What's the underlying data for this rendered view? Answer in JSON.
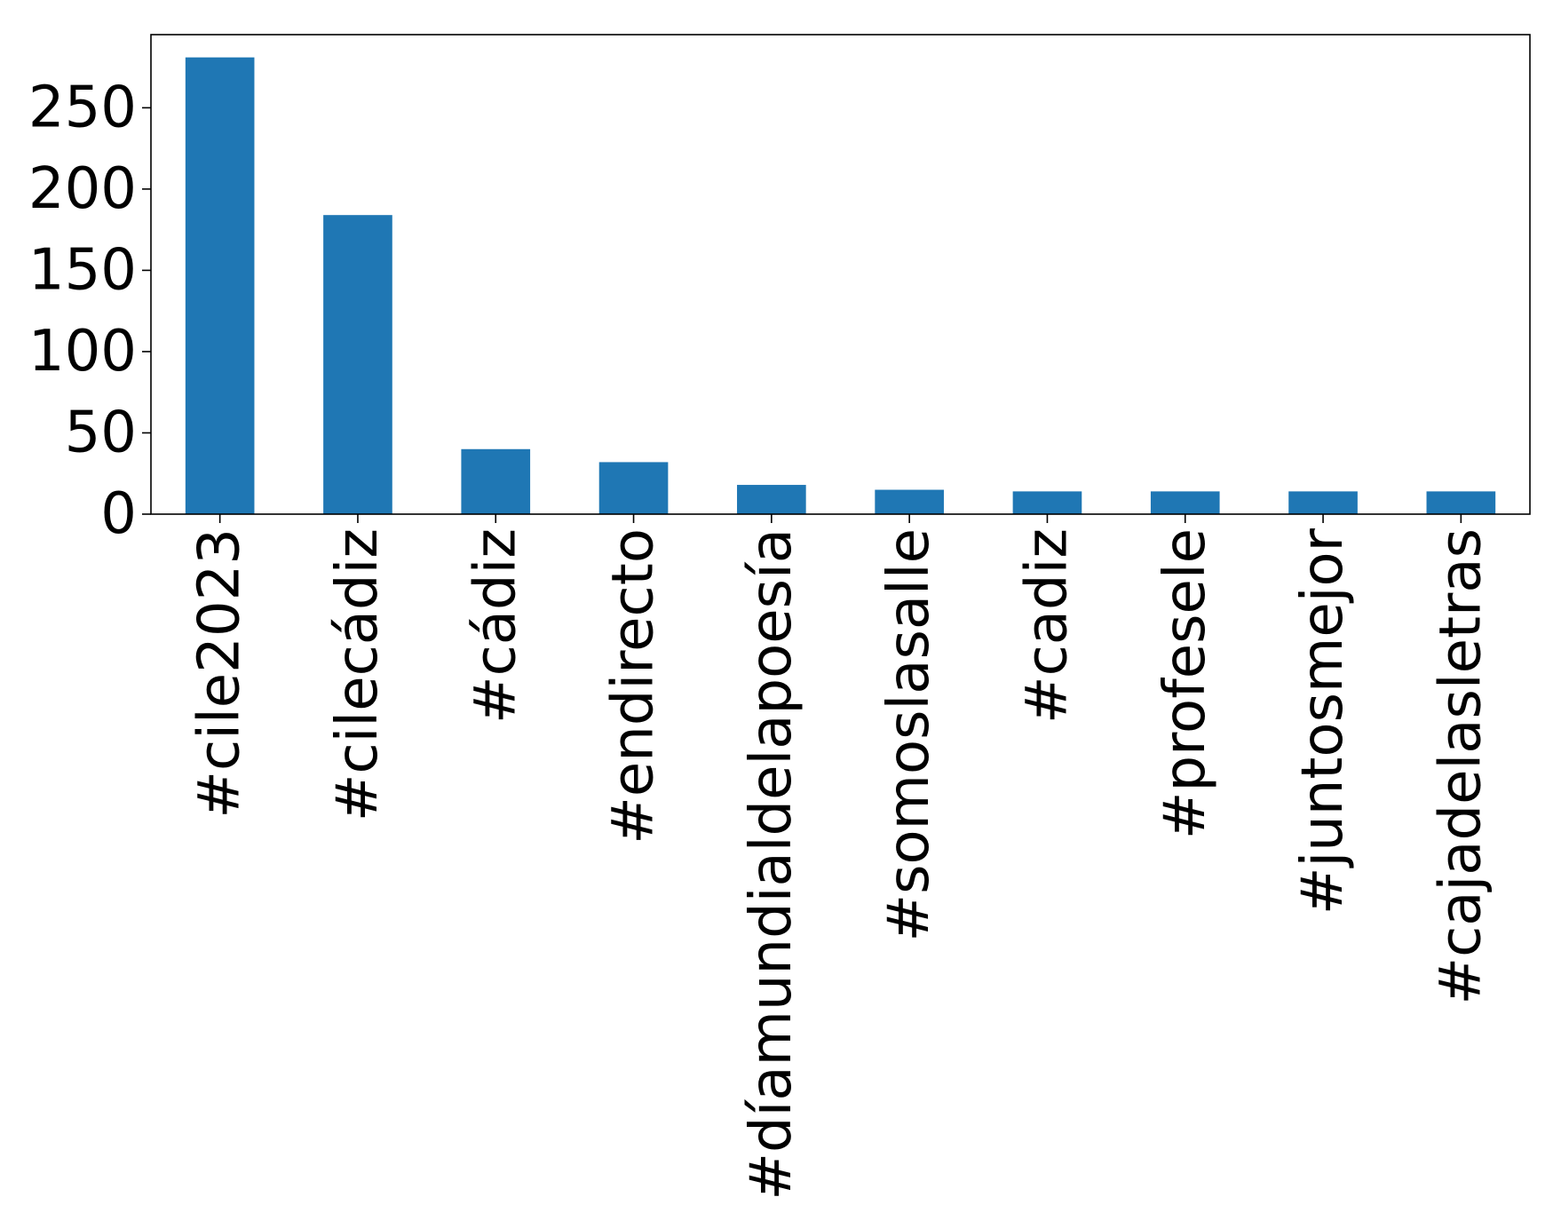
{
  "chart_data": {
    "type": "bar",
    "categories": [
      "#cile2023",
      "#cilecádiz",
      "#cádiz",
      "#endirecto",
      "#díamundialdelapoesía",
      "#somoslasalle",
      "#cadiz",
      "#profesele",
      "#juntosmejor",
      "#cajadelasletras"
    ],
    "values": [
      281,
      184,
      40,
      32,
      18,
      15,
      14,
      14,
      14,
      14
    ],
    "title": "",
    "xlabel": "",
    "ylabel": "",
    "ylim": [
      0,
      295
    ],
    "yticks": [
      0,
      50,
      100,
      150,
      200,
      250
    ],
    "grid": false,
    "legend": "none",
    "bar_color": "#1f77b4",
    "x_tick_rotation": "vertical"
  }
}
